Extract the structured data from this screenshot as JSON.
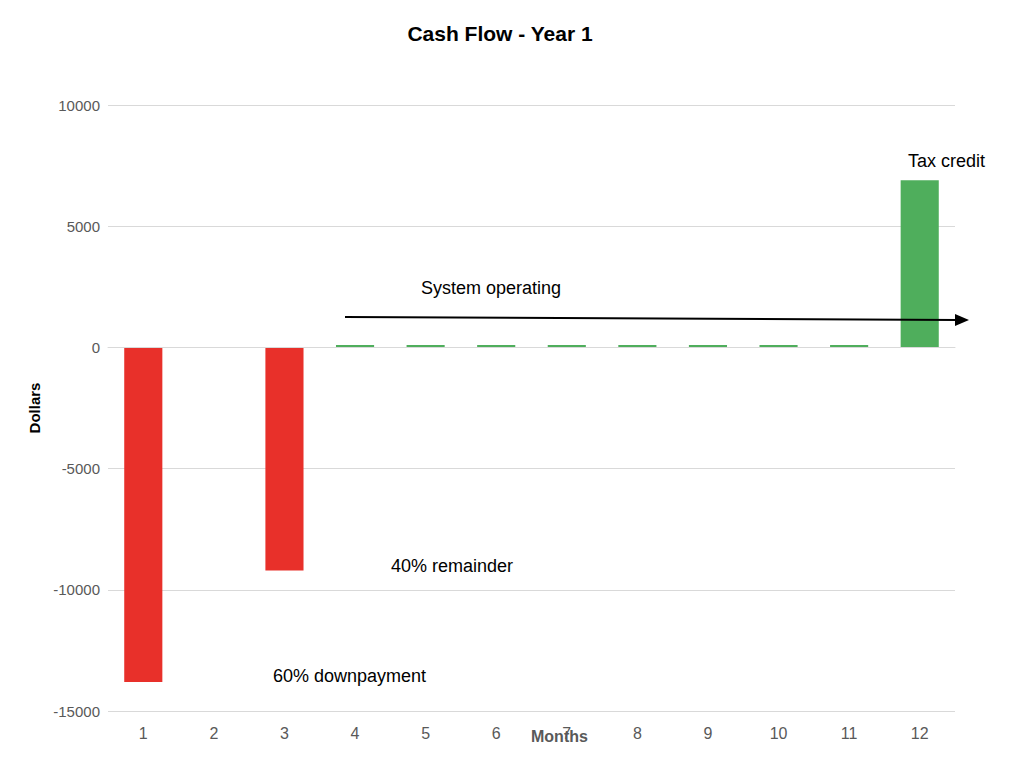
{
  "chart_data": {
    "type": "bar",
    "title": "Cash Flow - Year 1",
    "x_label": "Months",
    "y_label": "Dollars",
    "categories": [
      "1",
      "2",
      "3",
      "4",
      "5",
      "6",
      "7",
      "8",
      "9",
      "10",
      "11",
      "12"
    ],
    "values": [
      -13800,
      0,
      -9200,
      100,
      100,
      100,
      100,
      100,
      100,
      100,
      100,
      6900
    ],
    "colors": [
      "#e8302a",
      "#e8302a",
      "#e8302a",
      "#4fae5c",
      "#4fae5c",
      "#4fae5c",
      "#4fae5c",
      "#4fae5c",
      "#4fae5c",
      "#4fae5c",
      "#4fae5c",
      "#4fae5c"
    ],
    "ylim": [
      -15000,
      10000
    ],
    "yticks": [
      -15000,
      -10000,
      -5000,
      0,
      5000,
      10000
    ],
    "grid": true,
    "annotations": [
      "Tax credit",
      "System operating",
      "40% remainder",
      "60% downpayment"
    ]
  }
}
